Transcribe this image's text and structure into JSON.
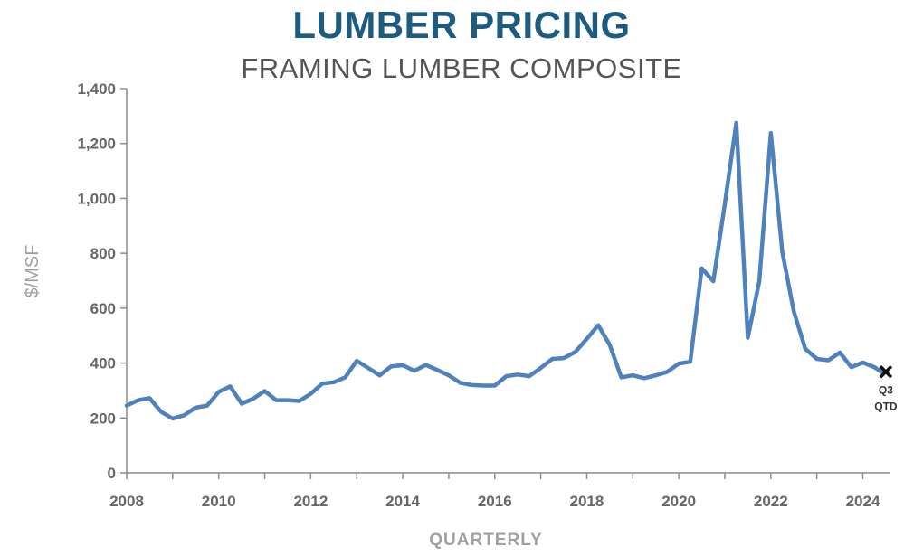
{
  "chart_data": {
    "type": "line",
    "title": "LUMBER PRICING",
    "subtitle": "FRAMING LUMBER COMPOSITE",
    "xlabel": "QUARTERLY",
    "ylabel": "$/MSF",
    "xlim": [
      2008,
      2024.6
    ],
    "ylim": [
      0,
      1400
    ],
    "xticks": [
      2008,
      2010,
      2012,
      2014,
      2016,
      2018,
      2020,
      2022,
      2024
    ],
    "xtick_labels": [
      "2008",
      "2010",
      "2012",
      "2014",
      "2016",
      "2018",
      "2020",
      "2022",
      "2024"
    ],
    "yticks": [
      0,
      200,
      400,
      600,
      800,
      1000,
      1200,
      1400
    ],
    "ytick_labels": [
      "0",
      "200",
      "400",
      "600",
      "800",
      "1,000",
      "1,200",
      "1,400"
    ],
    "grid": false,
    "line_color": "#4f81bd",
    "series": [
      {
        "x": [
          2008.0,
          2008.25,
          2008.5,
          2008.75,
          2009.0,
          2009.25,
          2009.5,
          2009.75,
          2010.0,
          2010.25,
          2010.5,
          2010.75,
          2011.0,
          2011.25,
          2011.5,
          2011.75,
          2012.0,
          2012.25,
          2012.5,
          2012.75,
          2013.0,
          2013.25,
          2013.5,
          2013.75,
          2014.0,
          2014.25,
          2014.5,
          2014.75,
          2015.0,
          2015.25,
          2015.5,
          2015.75,
          2016.0,
          2016.25,
          2016.5,
          2016.75,
          2017.0,
          2017.25,
          2017.5,
          2017.75,
          2018.0,
          2018.25,
          2018.5,
          2018.75,
          2019.0,
          2019.25,
          2019.5,
          2019.75,
          2020.0,
          2020.25,
          2020.5,
          2020.75,
          2021.0,
          2021.25,
          2021.5,
          2021.75,
          2022.0,
          2022.25,
          2022.5,
          2022.75,
          2023.0,
          2023.25,
          2023.5,
          2023.75,
          2024.0,
          2024.25
        ],
        "y": [
          245,
          265,
          272,
          222,
          198,
          210,
          238,
          245,
          295,
          315,
          252,
          270,
          298,
          265,
          265,
          262,
          288,
          325,
          330,
          348,
          408,
          382,
          355,
          388,
          392,
          372,
          393,
          375,
          355,
          328,
          320,
          318,
          318,
          352,
          358,
          352,
          382,
          415,
          418,
          440,
          488,
          538,
          465,
          348,
          355,
          345,
          355,
          368,
          398,
          405,
          745,
          698,
          980,
          1275,
          492,
          698,
          1238,
          805,
          588,
          452,
          415,
          410,
          438,
          385,
          402,
          385
        ]
      }
    ],
    "marker": {
      "x": 2024.5,
      "y": 368,
      "label_line1": "Q3",
      "label_line2": "QTD"
    }
  }
}
